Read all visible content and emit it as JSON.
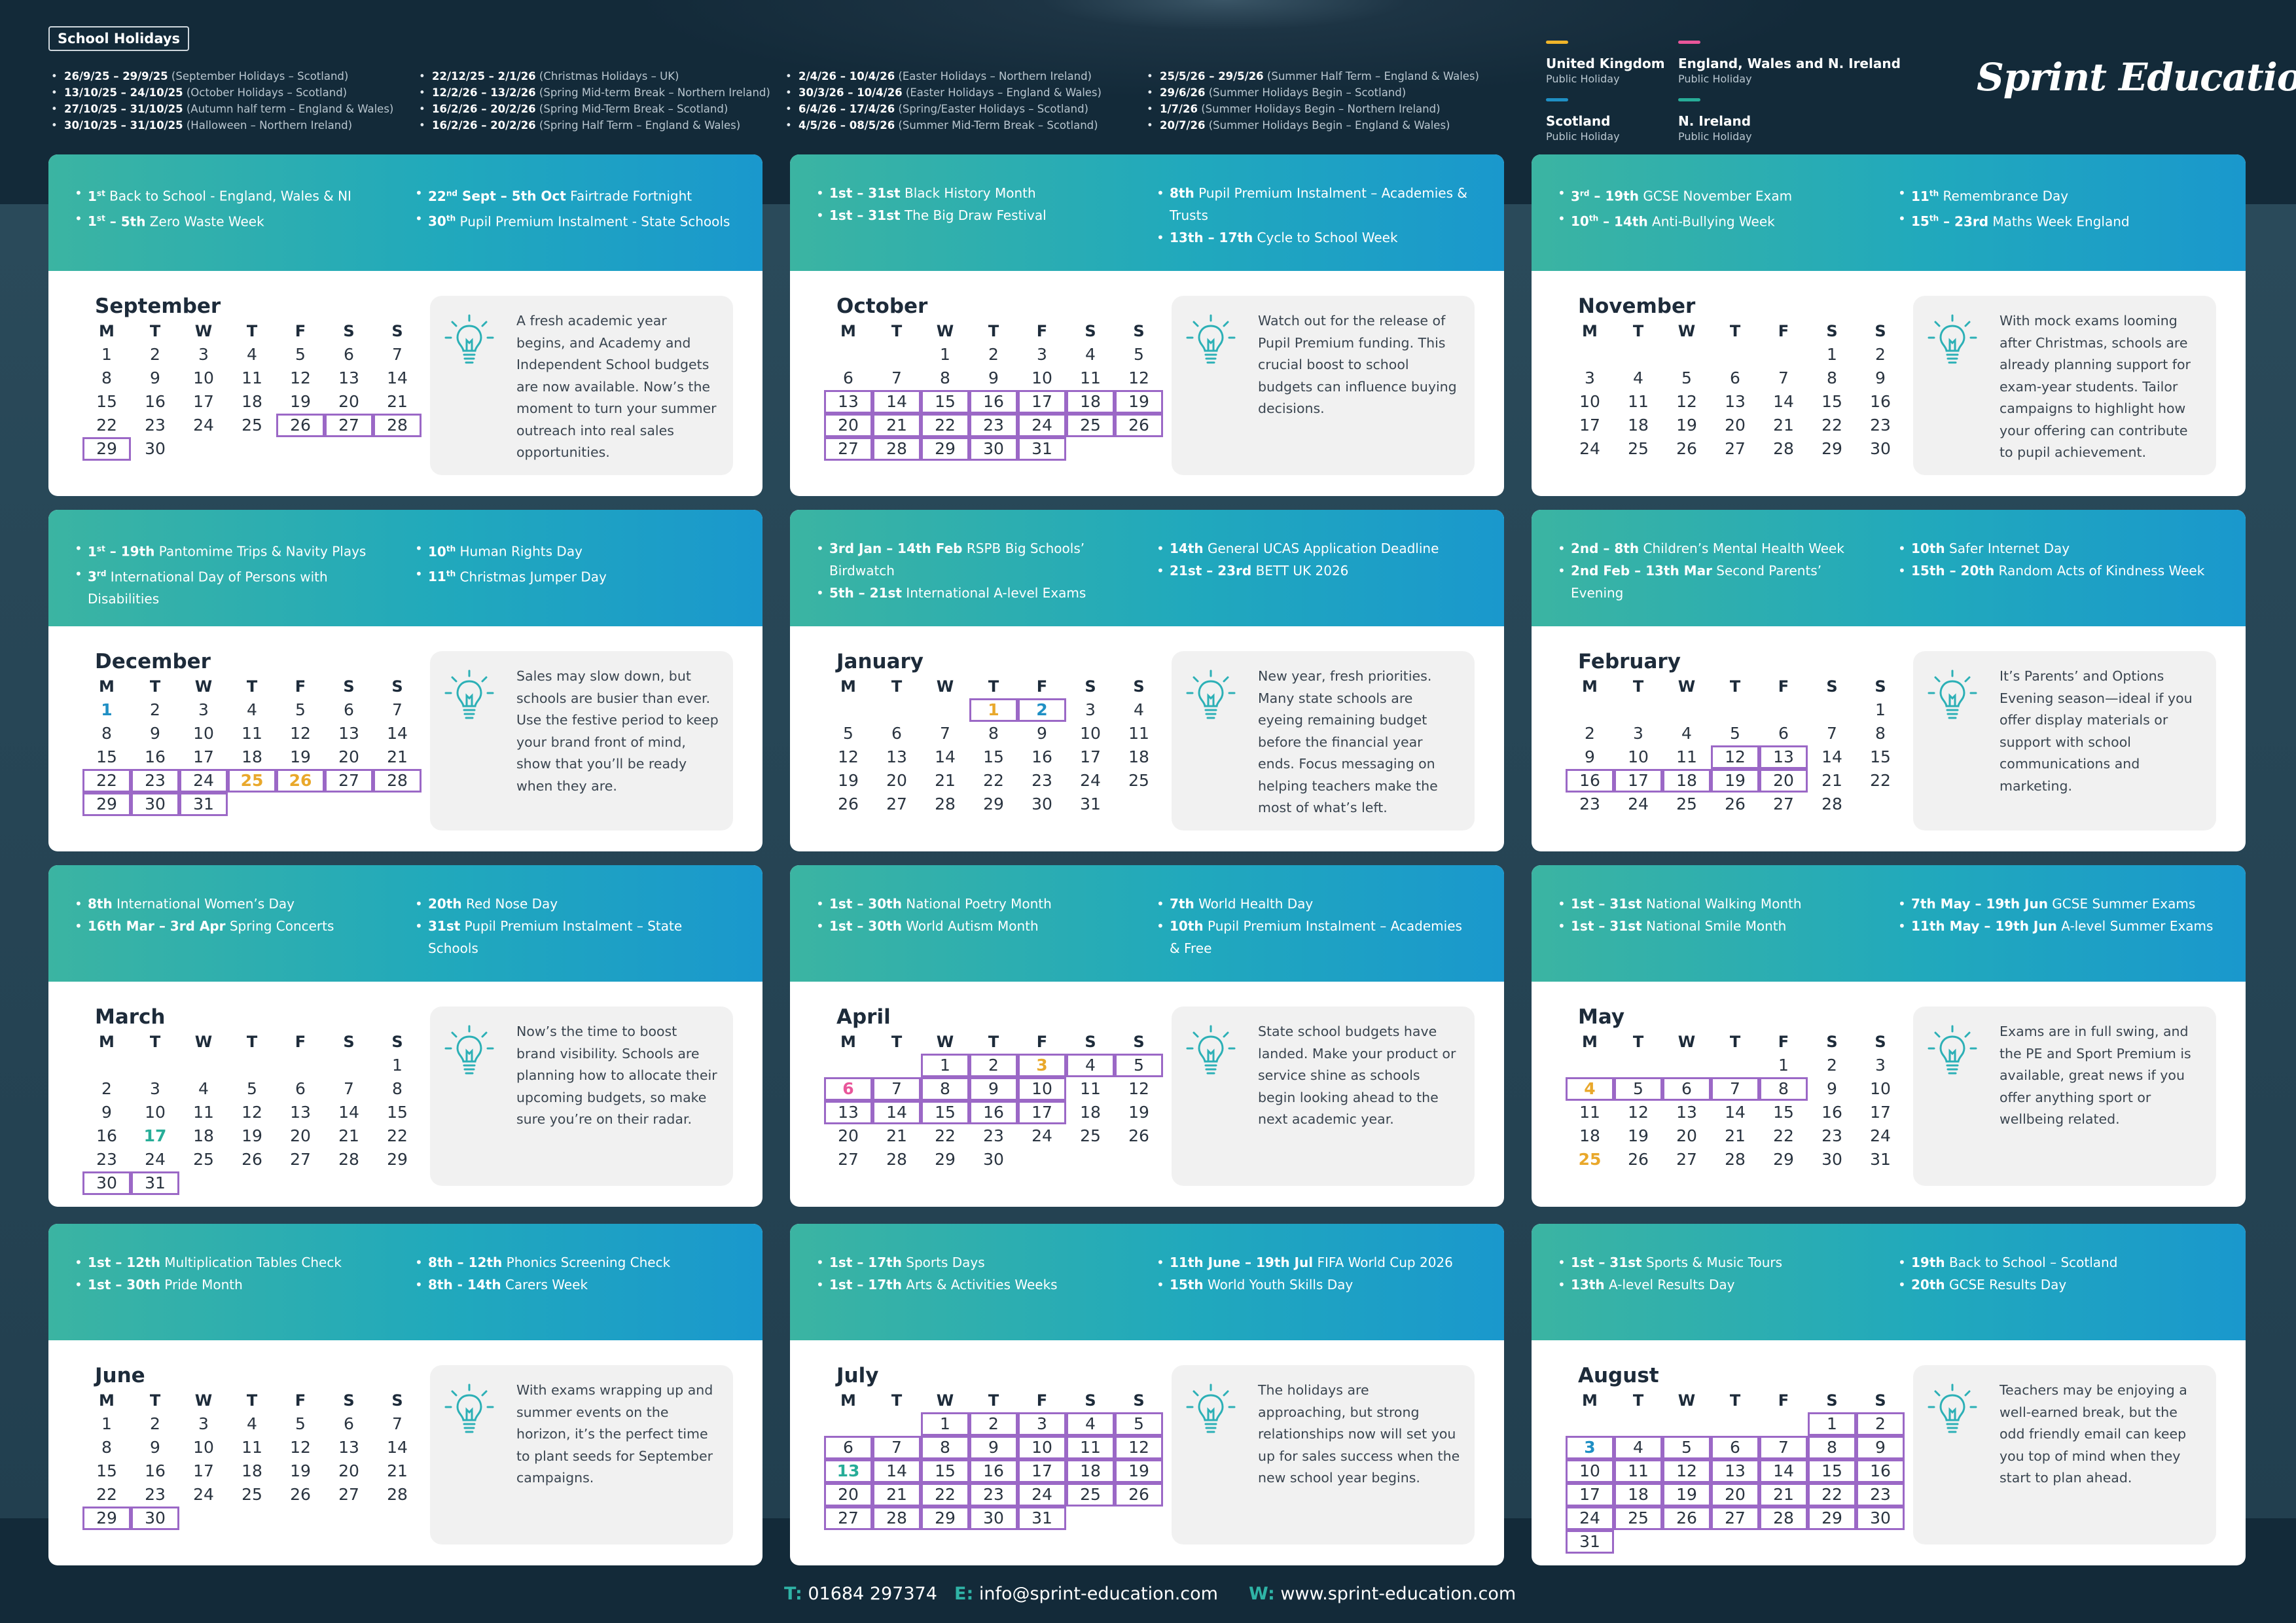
{
  "holidays": {
    "title": "School Holidays",
    "columns": [
      [
        {
          "dates": "26/9/25 – 29/9/25",
          "name": "(September Holidays – Scotland)"
        },
        {
          "dates": "13/10/25 – 24/10/25",
          "name": "(October Holidays – Scotland)"
        },
        {
          "dates": "27/10/25 – 31/10/25",
          "name": "(Autumn half term – England & Wales)"
        },
        {
          "dates": "30/10/25 – 31/10/25",
          "name": "(Halloween – Northern Ireland)"
        }
      ],
      [
        {
          "dates": "22/12/25 – 2/1/26",
          "name": "(Christmas Holidays – UK)"
        },
        {
          "dates": "12/2/26 – 13/2/26",
          "name": "(Spring Mid-term Break – Northern Ireland)"
        },
        {
          "dates": "16/2/26 – 20/2/26",
          "name": "(Spring Mid-Term Break – Scotland)"
        },
        {
          "dates": "16/2/26 – 20/2/26",
          "name": "(Spring Half Term – England & Wales)"
        }
      ],
      [
        {
          "dates": "2/4/26 – 10/4/26",
          "name": "(Easter Holidays – Northern Ireland)"
        },
        {
          "dates": "30/3/26 – 10/4/26",
          "name": "(Easter Holidays – England & Wales)"
        },
        {
          "dates": "6/4/26 – 17/4/26",
          "name": "(Spring/Easter Holidays – Scotland)"
        },
        {
          "dates": "4/5/26 – 08/5/26",
          "name": "(Summer Mid-Term Break – Scotland)"
        }
      ],
      [
        {
          "dates": "25/5/26 – 29/5/26",
          "name": "(Summer Half Term – England & Wales)"
        },
        {
          "dates": "29/6/26",
          "name": "(Summer Holidays Begin – Scotland)"
        },
        {
          "dates": "1/7/26",
          "name": "(Summer Holidays Begin – Northern Ireland)"
        },
        {
          "dates": "20/7/26",
          "name": "(Summer Holidays Begin – England & Wales)"
        }
      ]
    ]
  },
  "legend": [
    {
      "title": "United Kingdom",
      "sub": "Public Holiday",
      "color": "#f0b52a"
    },
    {
      "title": "England, Wales and N. Ireland",
      "sub": "Public Holiday",
      "color": "#e8569a"
    },
    {
      "title": "Scotland",
      "sub": "Public Holiday",
      "color": "#1f8fc4"
    },
    {
      "title": "N. Ireland",
      "sub": "Public Holiday",
      "color": "#27ad98"
    }
  ],
  "logo": "Sprint Education",
  "weekdays": [
    "M",
    "T",
    "W",
    "T",
    "F",
    "S",
    "S"
  ],
  "months": [
    {
      "name": "September",
      "offset": 0,
      "days": 30,
      "events_left": [
        {
          "d": "1",
          "s": "st",
          "rest": "",
          "label": "Back to School - England, Wales & NI"
        },
        {
          "d": "1",
          "s": "st",
          "rest": " – 5th",
          "label": "Zero Waste Week"
        }
      ],
      "events_right": [
        {
          "d": "22",
          "s": "nd",
          "rest": " Sept – 5th Oct",
          "label": "Fairtrade Fortnight"
        },
        {
          "d": "30",
          "s": "th",
          "rest": "",
          "label": "Pupil Premium Instalment - State Schools"
        }
      ],
      "highlight": [
        26,
        27,
        28,
        29
      ],
      "marks": {},
      "tip": "A fresh academic year begins, and Academy and Independent School budgets are now available. Now’s the moment to turn your summer outreach into real sales opportunities."
    },
    {
      "name": "October",
      "offset": 2,
      "days": 31,
      "events_left": [
        {
          "d": "1st – 31st",
          "s": "",
          "rest": "",
          "label": "Black History Month"
        },
        {
          "d": "1st – 31st",
          "s": "",
          "rest": "",
          "label": "The Big Draw Festival"
        }
      ],
      "events_right": [
        {
          "d": "8th",
          "s": "",
          "rest": "",
          "label": "Pupil Premium Instalment – Academies & Trusts"
        },
        {
          "d": "13th – 17th",
          "s": "",
          "rest": "",
          "label": "Cycle to School Week"
        }
      ],
      "highlight": [
        13,
        14,
        15,
        16,
        17,
        18,
        19,
        20,
        21,
        22,
        23,
        24,
        25,
        26,
        27,
        28,
        29,
        30,
        31
      ],
      "marks": {},
      "tip": "Watch out for the release of Pupil Premium funding. This crucial boost to school budgets can influence buying decisions."
    },
    {
      "name": "November",
      "offset": 5,
      "days": 30,
      "events_left": [
        {
          "d": "3",
          "s": "rd",
          "rest": " – 19th",
          "label": "GCSE November Exam"
        },
        {
          "d": "10",
          "s": "th",
          "rest": " – 14th",
          "label": "Anti-Bullying Week"
        }
      ],
      "events_right": [
        {
          "d": "11",
          "s": "th",
          "rest": "",
          "label": "Remembrance Day"
        },
        {
          "d": "15",
          "s": "th",
          "rest": " – 23rd",
          "label": "Maths Week England"
        }
      ],
      "highlight": [],
      "marks": {},
      "tip": "With mock exams looming after Christmas, schools are already planning support for exam-year students. Tailor campaigns to highlight how your offering can contribute to pupil achievement."
    },
    {
      "name": "December",
      "offset": 0,
      "days": 31,
      "events_left": [
        {
          "d": "1",
          "s": "st",
          "rest": " – 19th",
          "label": "Pantomime Trips & Navity Plays"
        },
        {
          "d": "3",
          "s": "rd",
          "rest": "",
          "label": "International Day of Persons with Disabilities"
        }
      ],
      "events_right": [
        {
          "d": "10",
          "s": "th",
          "rest": "",
          "label": "Human Rights Day"
        },
        {
          "d": "11",
          "s": "th",
          "rest": "",
          "label": "Christmas Jumper Day"
        }
      ],
      "highlight": [
        22,
        23,
        24,
        25,
        26,
        27,
        28,
        29,
        30,
        31
      ],
      "marks": {
        "1": "bl",
        "25": "ok",
        "26": "ok"
      },
      "tip": "Sales may slow down, but schools are busier than ever. Use the festive period to keep your brand front of mind, show that you’ll be ready when they are."
    },
    {
      "name": "January",
      "offset": 3,
      "days": 31,
      "events_left": [
        {
          "d": "3rd Jan – 14th Feb",
          "s": "",
          "rest": "",
          "label": "RSPB Big Schools’ Birdwatch"
        },
        {
          "d": "5th – 21st",
          "s": "",
          "rest": "",
          "label": "International A-level Exams"
        }
      ],
      "events_right": [
        {
          "d": "14th",
          "s": "",
          "rest": "",
          "label": "General UCAS Application Deadline"
        },
        {
          "d": "21st – 23rd",
          "s": "",
          "rest": "",
          "label": "BETT UK 2026"
        }
      ],
      "highlight": [
        1,
        2
      ],
      "marks": {
        "1": "ok",
        "2": "bl"
      },
      "tip": "New year, fresh priorities. Many state schools are eyeing remaining budget before the financial year ends. Focus messaging on helping teachers make the most of what’s left."
    },
    {
      "name": "February",
      "offset": 6,
      "days": 28,
      "events_left": [
        {
          "d": "2nd – 8th",
          "s": "",
          "rest": "",
          "label": "Children’s Mental Health Week"
        },
        {
          "d": "2nd Feb – 13th Mar",
          "s": "",
          "rest": "",
          "label": "Second Parents’ Evening"
        }
      ],
      "events_right": [
        {
          "d": "10th",
          "s": "",
          "rest": "",
          "label": "Safer Internet Day"
        },
        {
          "d": "15th – 20th",
          "s": "",
          "rest": "",
          "label": "Random Acts of Kindness Week"
        }
      ],
      "highlight": [
        12,
        13,
        16,
        17,
        18,
        19,
        20
      ],
      "marks": {},
      "tip": "It’s Parents’ and Options Evening season—ideal if you offer display materials or support with school communications and marketing."
    },
    {
      "name": "March",
      "offset": 6,
      "days": 31,
      "events_left": [
        {
          "d": "8th",
          "s": "",
          "rest": "",
          "label": "International Women’s Day"
        },
        {
          "d": "16th Mar – 3rd Apr",
          "s": "",
          "rest": "",
          "label": "Spring Concerts"
        }
      ],
      "events_right": [
        {
          "d": "20th",
          "s": "",
          "rest": "",
          "label": "Red Nose Day"
        },
        {
          "d": "31st",
          "s": "",
          "rest": "",
          "label": "Pupil Premium Instalment – State Schools"
        }
      ],
      "highlight": [
        30,
        31
      ],
      "marks": {
        "17": "tl"
      },
      "tip": "Now’s the time to boost brand visibility. Schools are planning how to allocate their upcoming budgets, so make sure you’re on their radar."
    },
    {
      "name": "April",
      "offset": 2,
      "days": 30,
      "events_left": [
        {
          "d": "1st – 30th",
          "s": "",
          "rest": "",
          "label": "National Poetry Month"
        },
        {
          "d": "1st – 30th",
          "s": "",
          "rest": "",
          "label": "World Autism Month"
        }
      ],
      "events_right": [
        {
          "d": "7th",
          "s": "",
          "rest": "",
          "label": "World Health Day"
        },
        {
          "d": "10th",
          "s": "",
          "rest": "",
          "label": "Pupil Premium Instalment – Academies & Free"
        }
      ],
      "highlight": [
        1,
        2,
        3,
        4,
        5,
        6,
        7,
        8,
        9,
        10,
        13,
        14,
        15,
        16,
        17
      ],
      "marks": {
        "3": "ok",
        "6": "pk"
      },
      "tip": "State school budgets have landed. Make your product or service shine as schools begin looking ahead to the next academic year."
    },
    {
      "name": "May",
      "offset": 4,
      "days": 31,
      "events_left": [
        {
          "d": "1st – 31st",
          "s": "",
          "rest": "",
          "label": "National Walking Month"
        },
        {
          "d": "1st – 31st",
          "s": "",
          "rest": "",
          "label": "National Smile Month"
        }
      ],
      "events_right": [
        {
          "d": "7th May – 19th Jun",
          "s": "",
          "rest": "",
          "label": "GCSE Summer Exams"
        },
        {
          "d": "11th May – 19th Jun",
          "s": "",
          "rest": "",
          "label": "A-level Summer Exams"
        }
      ],
      "highlight": [
        4,
        5,
        6,
        7,
        8
      ],
      "marks": {
        "4": "ok",
        "25": "ok"
      },
      "tip": "Exams are in full swing, and the PE and Sport Premium is available, great news if you offer anything sport or wellbeing related."
    },
    {
      "name": "June",
      "offset": 0,
      "days": 30,
      "events_left": [
        {
          "d": "1st – 12th",
          "s": "",
          "rest": "",
          "label": "Multiplication Tables Check"
        },
        {
          "d": "1st – 30th",
          "s": "",
          "rest": "",
          "label": "Pride Month"
        }
      ],
      "events_right": [
        {
          "d": "8th – 12th",
          "s": "",
          "rest": "",
          "label": "Phonics Screening Check"
        },
        {
          "d": "8th - 14th",
          "s": "",
          "rest": "",
          "label": "Carers Week"
        }
      ],
      "highlight": [
        29,
        30
      ],
      "marks": {},
      "tip": "With exams wrapping up and summer events on the horizon, it’s the perfect time to plant seeds for September campaigns."
    },
    {
      "name": "July",
      "offset": 2,
      "days": 31,
      "events_left": [
        {
          "d": "1st – 17th",
          "s": "",
          "rest": "",
          "label": "Sports Days"
        },
        {
          "d": "1st – 17th",
          "s": "",
          "rest": "",
          "label": "Arts & Activities Weeks"
        }
      ],
      "events_right": [
        {
          "d": "11th June – 19th Jul",
          "s": "",
          "rest": "",
          "label": "FIFA World Cup 2026"
        },
        {
          "d": "15th",
          "s": "",
          "rest": "",
          "label": "World Youth Skills Day"
        }
      ],
      "highlight": [
        1,
        2,
        3,
        4,
        5,
        6,
        7,
        8,
        9,
        10,
        11,
        12,
        13,
        14,
        15,
        16,
        17,
        18,
        19,
        20,
        21,
        22,
        23,
        24,
        25,
        26,
        27,
        28,
        29,
        30,
        31
      ],
      "marks": {
        "13": "tl"
      },
      "tip": "The holidays are approaching, but strong relationships now will set you up for sales success when the new school year begins."
    },
    {
      "name": "August",
      "offset": 5,
      "days": 31,
      "events_left": [
        {
          "d": "1st – 31st",
          "s": "",
          "rest": "",
          "label": "Sports & Music Tours"
        },
        {
          "d": "13th",
          "s": "",
          "rest": "",
          "label": "A-level Results Day"
        }
      ],
      "events_right": [
        {
          "d": "19th",
          "s": "",
          "rest": "",
          "label": "Back to School – Scotland"
        },
        {
          "d": "20th",
          "s": "",
          "rest": "",
          "label": "GCSE Results Day"
        }
      ],
      "highlight": [
        1,
        2,
        3,
        4,
        5,
        6,
        7,
        8,
        9,
        10,
        11,
        12,
        13,
        14,
        15,
        16,
        17,
        18,
        19,
        20,
        21,
        22,
        23,
        24,
        25,
        26,
        27,
        28,
        29,
        30,
        31
      ],
      "marks": {
        "3": "bl"
      },
      "tip": "Teachers may be enjoying a well-earned break, but the odd friendly email can keep you top of mind when they start to plan ahead."
    }
  ],
  "footer": {
    "t_key": "T:",
    "phone": "01684 297374",
    "e_key": "E:",
    "email": "info@sprint-education.com",
    "w_key": "W:",
    "web": "www.sprint-education.com"
  }
}
